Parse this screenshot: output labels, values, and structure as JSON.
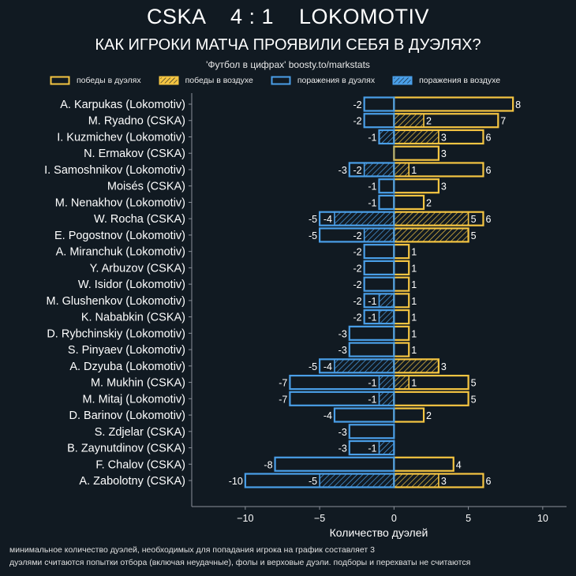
{
  "header": {
    "title": "CSKA    4 : 1    LOKOMOTIV",
    "subtitle": "КАК ИГРОКИ МАТЧА ПРОЯВИЛИ СЕБЯ В ДУЭЛЯХ?",
    "credit": "'Футбол в цифрах' boosty.to/markstats"
  },
  "colors": {
    "background": "#111a22",
    "wins": "#f5c542",
    "losses": "#4a9fe8",
    "axis": "#8a9099",
    "text": "#ffffff"
  },
  "legend": [
    {
      "label": "победы в дуэлях",
      "kind": "wins-total"
    },
    {
      "label": "победы в воздухе",
      "kind": "wins-aerial"
    },
    {
      "label": "поражения в дуэлях",
      "kind": "losses-total"
    },
    {
      "label": "поражения в воздухе",
      "kind": "losses-aerial"
    }
  ],
  "footer": {
    "line1": "минимальное количество дуэлей, необходимых для попадания игрока на график составляет 3",
    "line2": "дуэлями считаются попытки отбора (включая неудачные), фолы и верховые дуэли. подборы и перехваты не считаются"
  },
  "chart_data": {
    "type": "bar",
    "orientation": "horizontal",
    "xlabel": "Количество дуэлей",
    "ylabel": "",
    "xlim": [
      -13.6,
      11.6
    ],
    "xticks": [
      -10,
      -5,
      0,
      5,
      10
    ],
    "xtick_labels": [
      "−10",
      "−5",
      "0",
      "5",
      "10"
    ],
    "grid": false,
    "legend_position": "top",
    "categories": [
      "A. Karpukas (Lokomotiv)",
      "M. Ryadno (CSKA)",
      "I. Kuzmichev (Lokomotiv)",
      "N. Ermakov (CSKA)",
      "I. Samoshnikov (Lokomotiv)",
      "Moisés (CSKA)",
      "M. Nenakhov (Lokomotiv)",
      "W. Rocha (CSKA)",
      "E. Pogostnov (Lokomotiv)",
      "A. Miranchuk (Lokomotiv)",
      "Y. Arbuzov (CSKA)",
      "W. Isidor (Lokomotiv)",
      "M. Glushenkov (Lokomotiv)",
      "K. Nababkin (CSKA)",
      "D. Rybchinskiy (Lokomotiv)",
      "S. Pinyaev (Lokomotiv)",
      "A. Dzyuba (Lokomotiv)",
      "M. Mukhin (CSKA)",
      "M. Mitaj (Lokomotiv)",
      "D. Barinov (Lokomotiv)",
      "S. Zdjelar (CSKA)",
      "B. Zaynutdinov (CSKA)",
      "F. Chalov (CSKA)",
      "A. Zabolotny (CSKA)"
    ],
    "series": [
      {
        "name": "победы в дуэлях",
        "values": [
          8,
          7,
          6,
          3,
          6,
          3,
          2,
          6,
          5,
          1,
          1,
          1,
          1,
          1,
          1,
          1,
          3,
          5,
          5,
          2,
          0,
          0,
          4,
          6
        ]
      },
      {
        "name": "победы в воздухе",
        "values": [
          0,
          2,
          3,
          0,
          1,
          0,
          0,
          5,
          5,
          0,
          0,
          0,
          0,
          0,
          0,
          0,
          3,
          1,
          0,
          0,
          0,
          0,
          0,
          3
        ]
      },
      {
        "name": "поражения в дуэлях",
        "values": [
          -2,
          -2,
          -1,
          0,
          -3,
          -1,
          -1,
          -5,
          -5,
          -2,
          -2,
          -2,
          -2,
          -2,
          -3,
          -3,
          -5,
          -7,
          -7,
          -4,
          -3,
          -3,
          -8,
          -10
        ]
      },
      {
        "name": "поражения в воздухе",
        "values": [
          0,
          0,
          -1,
          0,
          -2,
          0,
          0,
          -4,
          -2,
          0,
          0,
          0,
          -1,
          -1,
          0,
          0,
          -4,
          -1,
          -1,
          0,
          0,
          -1,
          0,
          -5
        ]
      }
    ],
    "labels_shown": {
      "wins_aerial_labeled": [
        false,
        true,
        true,
        false,
        true,
        false,
        false,
        true,
        false,
        false,
        false,
        false,
        false,
        false,
        false,
        false,
        false,
        true,
        false,
        false,
        false,
        false,
        false,
        true
      ],
      "losses_aerial_labeled": [
        false,
        false,
        false,
        false,
        true,
        false,
        false,
        true,
        true,
        false,
        false,
        false,
        true,
        true,
        false,
        false,
        true,
        true,
        true,
        false,
        false,
        true,
        false,
        true
      ]
    }
  }
}
